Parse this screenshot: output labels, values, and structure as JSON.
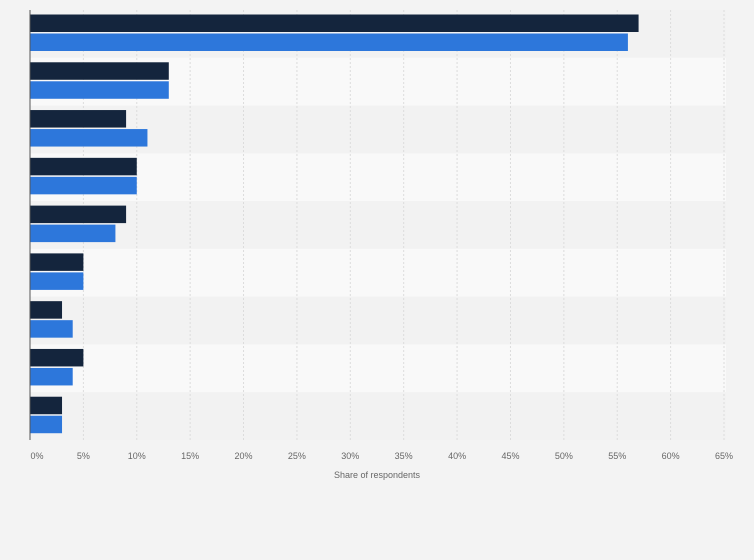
{
  "chart_data": {
    "type": "bar",
    "orientation": "horizontal",
    "categories": [
      "",
      "",
      "",
      "",
      "",
      "",
      "",
      "",
      ""
    ],
    "series": [
      {
        "values": [
          57,
          13,
          9,
          10,
          9,
          5,
          3,
          5,
          3
        ],
        "color": "#14253d"
      },
      {
        "values": [
          56,
          13,
          11,
          10,
          8,
          5,
          4,
          4,
          3
        ],
        "color": "#2d77db"
      }
    ],
    "xlabel": "Share of respondents",
    "ylabel": "",
    "xlim": [
      0,
      65
    ],
    "ticks": [
      0,
      5,
      10,
      15,
      20,
      25,
      30,
      35,
      40,
      45,
      50,
      55,
      60,
      65
    ],
    "tick_labels": [
      "0%",
      "5%",
      "10%",
      "15%",
      "20%",
      "25%",
      "30%",
      "35%",
      "40%",
      "45%",
      "50%",
      "55%",
      "60%",
      "65%"
    ],
    "grid": "vertical",
    "legend": "none"
  },
  "colors": {
    "page_background": "#f3f3f3",
    "band_light": "#f9f9f9",
    "band_dark": "#f2f2f2",
    "gridline": "#dcdcdc",
    "axis": "#555555",
    "text": "#666666"
  }
}
